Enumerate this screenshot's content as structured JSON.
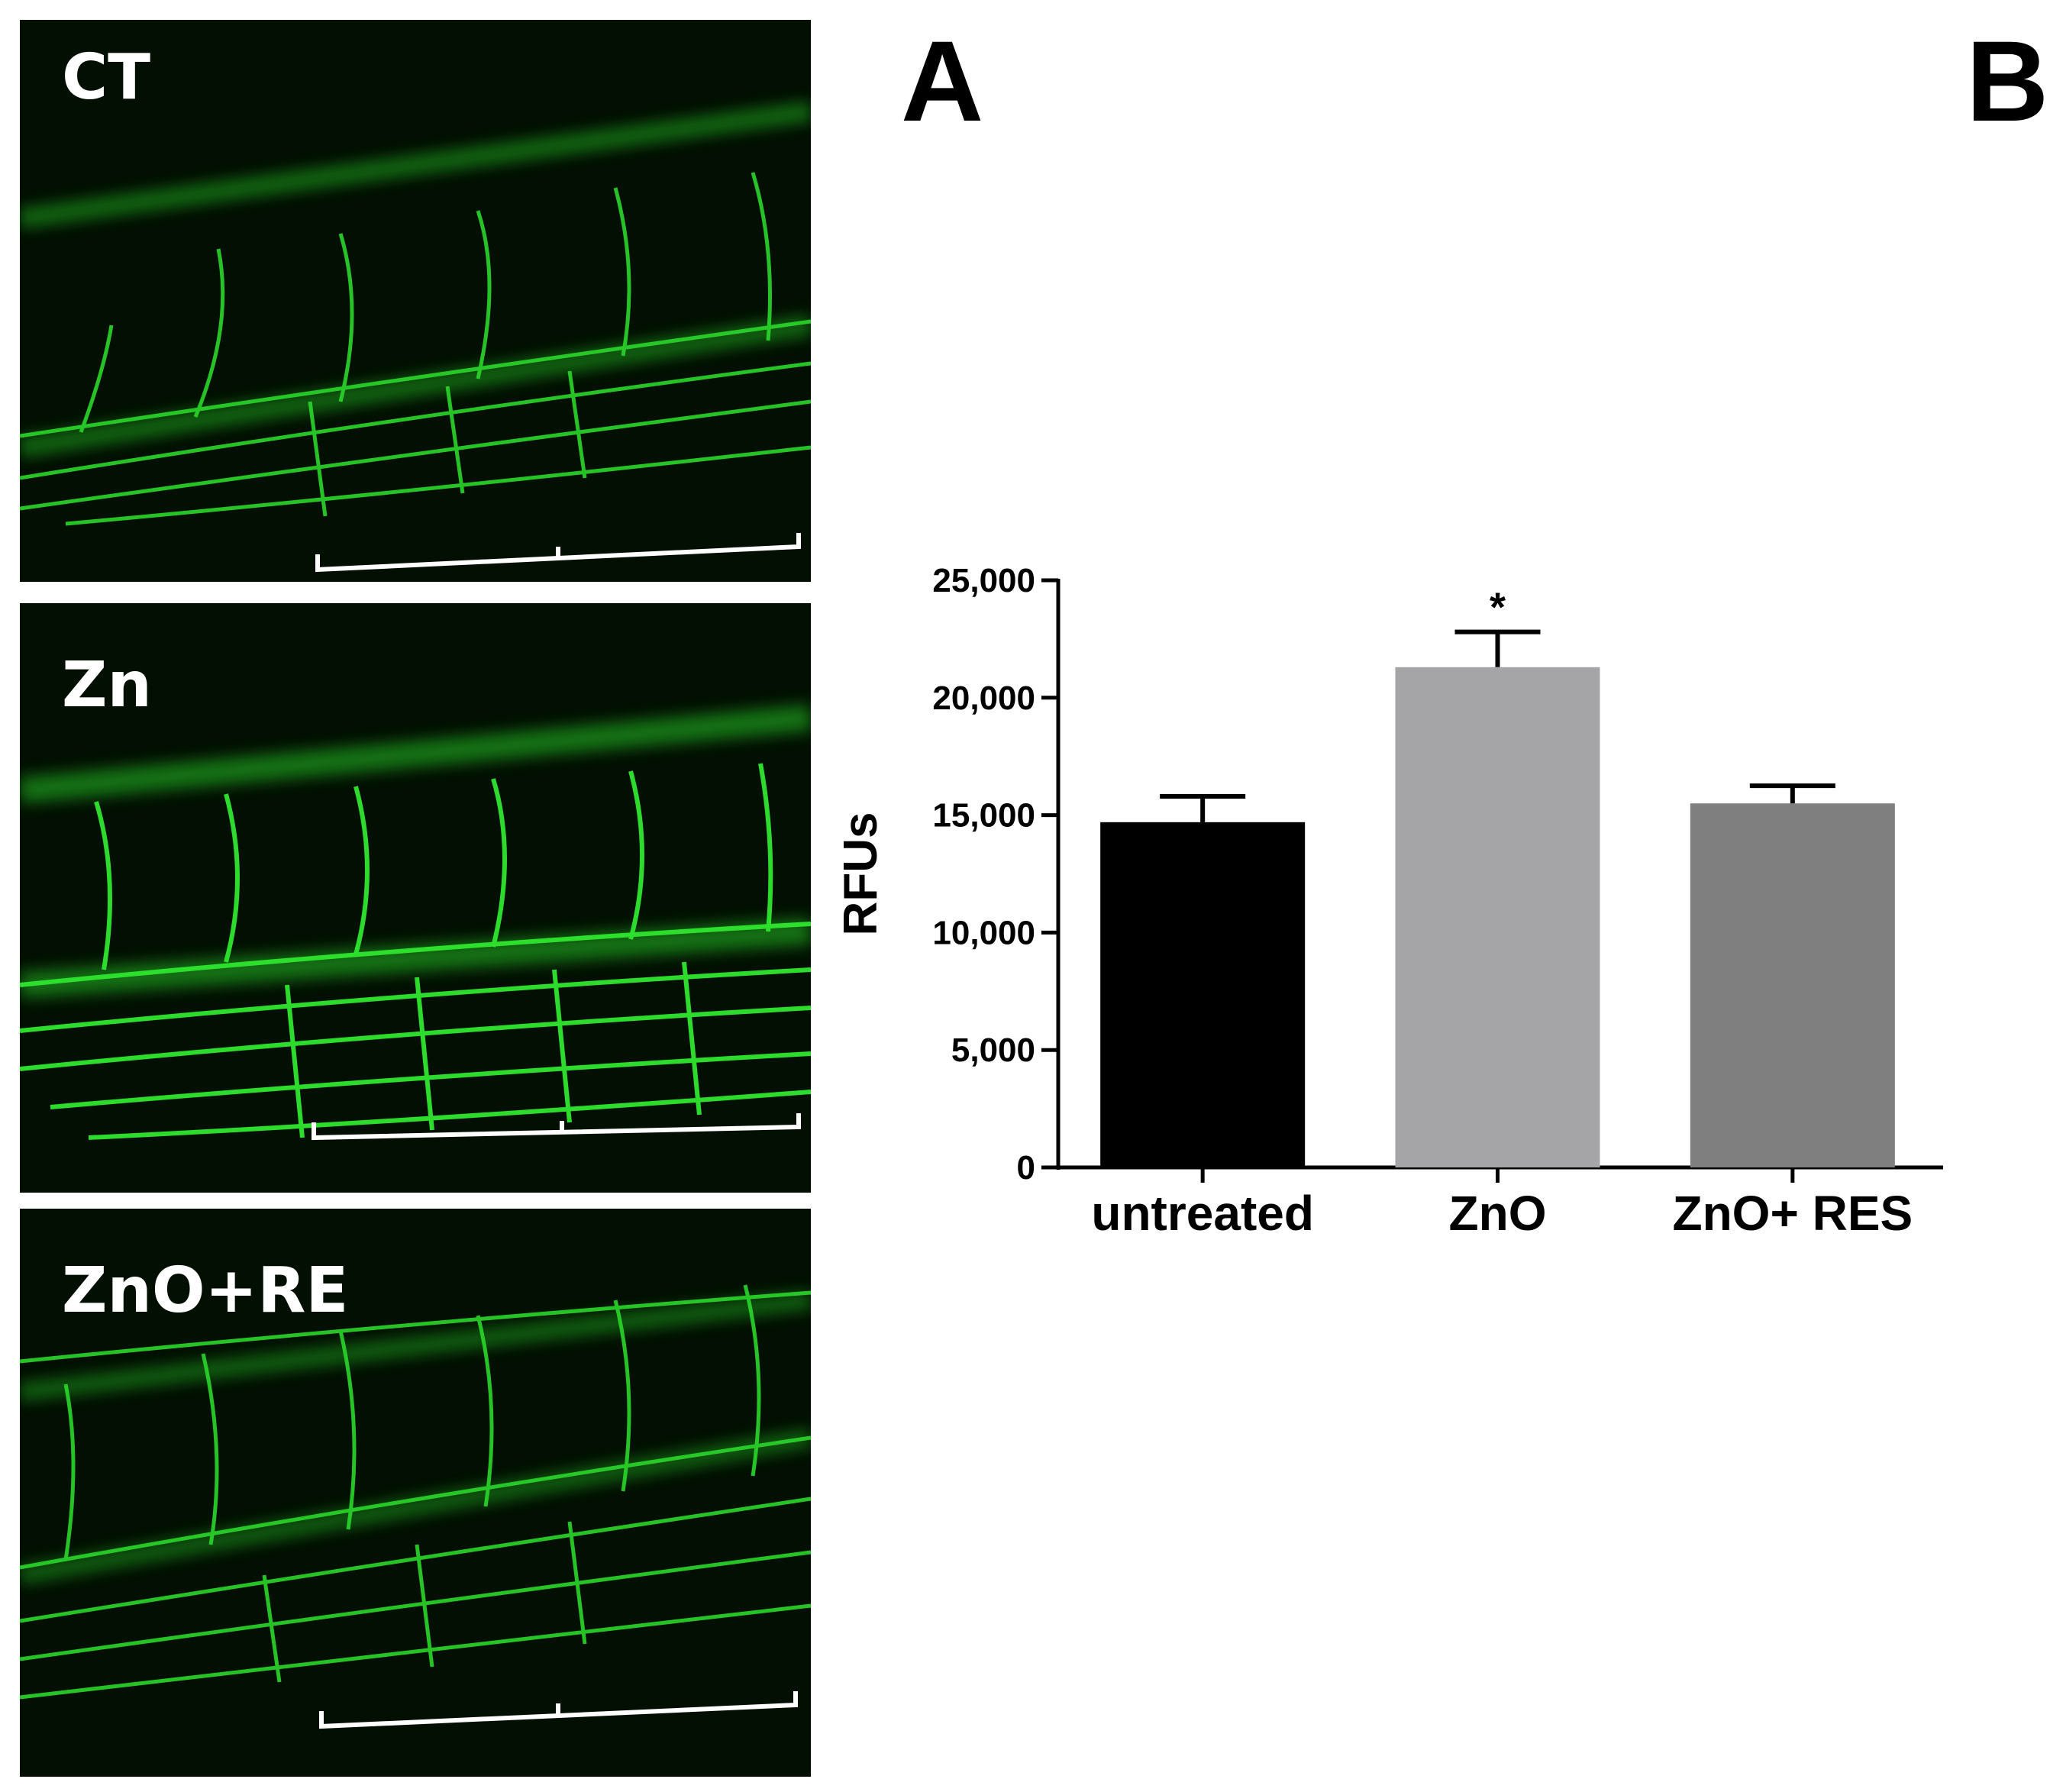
{
  "figure": {
    "panel_a_label": "A",
    "panel_b_label": "B"
  },
  "micrographs": [
    {
      "label": "CT"
    },
    {
      "label": "Zn"
    },
    {
      "label": "ZnO+RE"
    }
  ],
  "colors": {
    "micrograph_background": "#020f02",
    "vessel_green": "#2bd62b",
    "bar_untreated": "#000000",
    "bar_zno": "#a5a5a8",
    "bar_zno_res": "#7f7f7f"
  },
  "chart_data": {
    "type": "bar",
    "categories": [
      "untreated",
      "ZnO",
      "ZnO+ RES"
    ],
    "values": [
      14700,
      21300,
      15500
    ],
    "errors": [
      1100,
      1500,
      750
    ],
    "annotations": [
      "",
      "*",
      ""
    ],
    "ylabel": "RFUs",
    "xlabel": "",
    "ylim": [
      0,
      25000
    ],
    "yticks": [
      "0",
      "5,000",
      "10,000",
      "15,000",
      "20,000",
      "25,000"
    ],
    "ytick_values": [
      0,
      5000,
      10000,
      15000,
      20000,
      25000
    ],
    "bar_colors": [
      "#000000",
      "#a5a5a8",
      "#7f7f7f"
    ],
    "grid": false,
    "legend": "none"
  }
}
